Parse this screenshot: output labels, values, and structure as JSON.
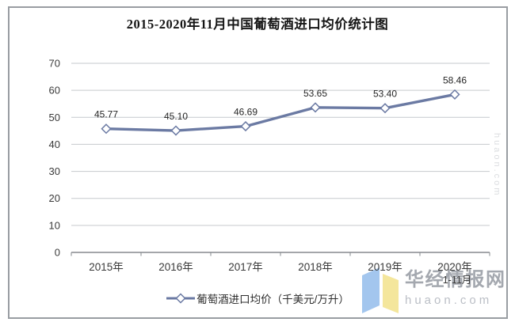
{
  "title": "2015-2020年11月中国葡萄酒进口均价统计图",
  "legend": {
    "marker": "line-diamond-marker"
  },
  "watermark": {
    "brand": "华经情报网",
    "domain": "huaon.com",
    "side_text": "huaon.com",
    "logo_blue": "#a3c6ee",
    "logo_yellow": "#f4e69c"
  },
  "chart_data": {
    "type": "line",
    "title": "2015-2020年11月中国葡萄酒进口均价统计图",
    "categories": [
      "2015年",
      "2016年",
      "2017年",
      "2018年",
      "2019年",
      "2020年"
    ],
    "category_sublabels": [
      "",
      "",
      "",
      "",
      "",
      "1-11月"
    ],
    "series": [
      {
        "name": "葡萄酒进口均价（千美元/万升）",
        "values": [
          45.77,
          45.1,
          46.69,
          53.65,
          53.4,
          58.46
        ]
      }
    ],
    "yticks": [
      0,
      10,
      20,
      30,
      40,
      50,
      60,
      70
    ],
    "ylim": [
      0,
      70
    ],
    "grid": true,
    "legend_position": "bottom",
    "line_color": "#6b7aa3",
    "marker": "diamond",
    "marker_fill": "#ffffff",
    "grid_color": "#c6c9cd",
    "axis_color": "#85898e",
    "label_color": "#262626",
    "tick_label_color": "#3a3a3a"
  }
}
